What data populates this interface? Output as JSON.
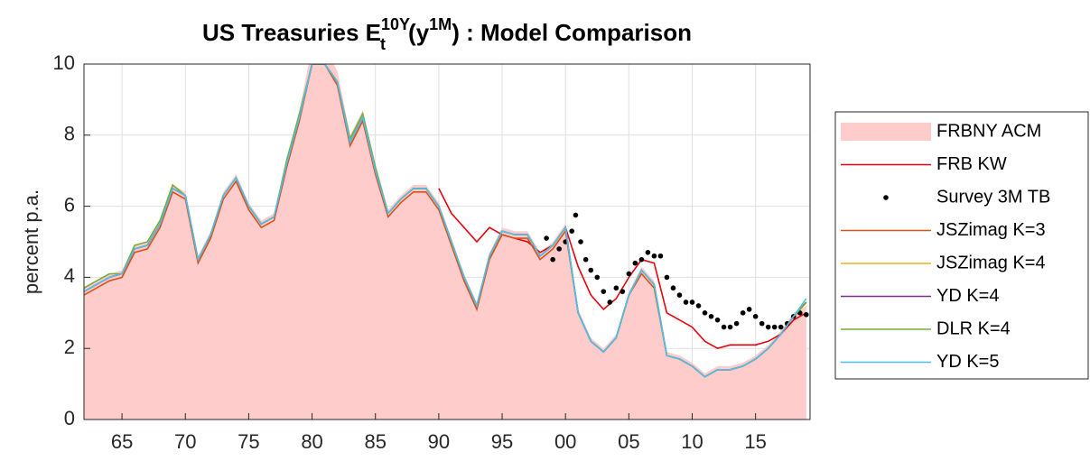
{
  "chart_data": {
    "type": "line",
    "title": {
      "text": "US Treasuries E",
      "sub": "t",
      "sup": "10Y",
      "mid": "(y",
      "sup2": "1M",
      "end": ") : Model Comparison"
    },
    "y_label": "percent p.a.",
    "xlim": [
      1962,
      2019.3
    ],
    "ylim": [
      0,
      10
    ],
    "xticks": [
      {
        "value": 1965,
        "label": "65"
      },
      {
        "value": 1970,
        "label": "70"
      },
      {
        "value": 1975,
        "label": "75"
      },
      {
        "value": 1980,
        "label": "80"
      },
      {
        "value": 1985,
        "label": "85"
      },
      {
        "value": 1990,
        "label": "90"
      },
      {
        "value": 1995,
        "label": "95"
      },
      {
        "value": 2000,
        "label": "00"
      },
      {
        "value": 2005,
        "label": "05"
      },
      {
        "value": 2010,
        "label": "10"
      },
      {
        "value": 2015,
        "label": "15"
      }
    ],
    "yticks": [
      0,
      2,
      4,
      6,
      8,
      10
    ],
    "grid": true,
    "legend": "outside-right",
    "x": [
      1962,
      1963,
      1964,
      1965,
      1966,
      1967,
      1968,
      1969,
      1970,
      1971,
      1972,
      1973,
      1974,
      1975,
      1976,
      1977,
      1978,
      1979,
      1980,
      1981,
      1982,
      1983,
      1984,
      1985,
      1986,
      1987,
      1988,
      1989,
      1990,
      1991,
      1992,
      1993,
      1994,
      1995,
      1996,
      1997,
      1998,
      1999,
      2000,
      2001,
      2002,
      2003,
      2004,
      2005,
      2006,
      2007,
      2008,
      2009,
      2010,
      2011,
      2012,
      2013,
      2014,
      2015,
      2016,
      2017,
      2018,
      2019
    ],
    "series": [
      {
        "name": "FRBNY ACM",
        "style": "area",
        "color": "#ffcccc",
        "values": [
          3.7,
          3.9,
          4.1,
          4.2,
          4.9,
          5.0,
          5.6,
          6.6,
          6.4,
          4.6,
          5.3,
          6.4,
          6.9,
          6.1,
          5.6,
          5.8,
          7.3,
          8.7,
          10.5,
          10.5,
          9.8,
          8.0,
          8.7,
          7.2,
          5.9,
          6.3,
          6.6,
          6.6,
          6.1,
          5.1,
          4.1,
          3.3,
          4.7,
          5.4,
          5.3,
          5.3,
          4.7,
          5.0,
          5.5,
          3.1,
          2.3,
          2.0,
          2.4,
          3.6,
          4.3,
          3.9,
          1.9,
          1.8,
          1.6,
          1.3,
          1.5,
          1.5,
          1.6,
          1.8,
          2.1,
          2.5,
          3.0,
          3.2
        ]
      },
      {
        "name": "FRB KW",
        "style": "line",
        "color": "#e8000b",
        "values": [
          null,
          null,
          null,
          null,
          null,
          null,
          null,
          null,
          null,
          null,
          null,
          null,
          null,
          null,
          null,
          null,
          null,
          null,
          null,
          null,
          null,
          null,
          null,
          null,
          null,
          null,
          null,
          null,
          6.5,
          5.8,
          5.4,
          5.0,
          5.4,
          5.2,
          5.1,
          5.0,
          4.7,
          4.9,
          5.4,
          4.3,
          3.5,
          3.1,
          3.4,
          4.0,
          4.5,
          4.4,
          3.0,
          2.8,
          2.6,
          2.2,
          2.0,
          2.1,
          2.1,
          2.1,
          2.2,
          2.4,
          2.8,
          3.0
        ]
      },
      {
        "name": "Survey 3M TB",
        "style": "marker",
        "color": "#000000",
        "x": [
          1998.5,
          1999,
          1999.5,
          2000,
          2000.5,
          2000.8,
          2001.2,
          2001.6,
          2002,
          2002.5,
          2003,
          2003.5,
          2004,
          2004.5,
          2005,
          2005.5,
          2006,
          2006.5,
          2007,
          2007.5,
          2008,
          2008.5,
          2009,
          2009.5,
          2010,
          2010.5,
          2011,
          2011.5,
          2012,
          2012.5,
          2013,
          2013.5,
          2014,
          2014.5,
          2015,
          2015.5,
          2016,
          2016.5,
          2017,
          2017.5,
          2018,
          2018.5,
          2019
        ],
        "values": [
          5.1,
          4.5,
          4.8,
          5.0,
          5.3,
          5.75,
          5.0,
          4.5,
          4.2,
          4.0,
          3.6,
          3.3,
          3.7,
          3.6,
          4.1,
          4.4,
          4.5,
          4.7,
          4.6,
          4.6,
          4.0,
          3.7,
          3.5,
          3.3,
          3.3,
          3.2,
          3.0,
          2.9,
          2.8,
          2.6,
          2.6,
          2.7,
          3.0,
          3.1,
          2.9,
          2.7,
          2.6,
          2.6,
          2.6,
          2.7,
          2.9,
          3.0,
          2.95
        ]
      },
      {
        "name": "JSZimag K=3",
        "style": "line",
        "color": "#d95319",
        "values": [
          3.5,
          3.7,
          3.9,
          4.0,
          4.7,
          4.8,
          5.4,
          6.4,
          6.2,
          4.4,
          5.1,
          6.2,
          6.7,
          5.9,
          5.4,
          5.6,
          7.1,
          8.4,
          10.0,
          10.0,
          9.4,
          7.7,
          8.4,
          6.9,
          5.7,
          6.1,
          6.4,
          6.4,
          5.9,
          4.9,
          3.9,
          3.1,
          4.5,
          5.2,
          5.1,
          5.1,
          4.5,
          4.8,
          5.3,
          3.0,
          2.2,
          1.9,
          2.3,
          3.5,
          4.1,
          3.7,
          1.8,
          1.7,
          1.5,
          1.2,
          1.4,
          1.4,
          1.5,
          1.7,
          2.0,
          2.4,
          2.9,
          3.3
        ]
      },
      {
        "name": "JSZimag K=4",
        "style": "line",
        "color": "#edb120",
        "values": [
          3.6,
          3.8,
          4.0,
          4.1,
          4.8,
          4.9,
          5.5,
          6.5,
          6.3,
          4.5,
          5.2,
          6.3,
          6.8,
          6.0,
          5.5,
          5.7,
          7.2,
          8.5,
          10.0,
          10.0,
          9.5,
          7.8,
          8.5,
          7.0,
          5.8,
          6.2,
          6.5,
          6.5,
          6.0,
          5.0,
          4.0,
          3.2,
          4.6,
          5.3,
          5.2,
          5.2,
          4.6,
          4.9,
          5.4,
          3.0,
          2.2,
          1.9,
          2.3,
          3.5,
          4.2,
          3.8,
          1.8,
          1.7,
          1.5,
          1.2,
          1.4,
          1.4,
          1.5,
          1.7,
          2.0,
          2.4,
          2.9,
          3.3
        ]
      },
      {
        "name": "YD  K=4",
        "style": "line",
        "color": "#7e2f8e",
        "values": [
          3.6,
          3.8,
          4.0,
          4.1,
          4.8,
          4.9,
          5.5,
          6.5,
          6.3,
          4.5,
          5.2,
          6.3,
          6.8,
          6.0,
          5.5,
          5.7,
          7.2,
          8.5,
          10.0,
          10.0,
          9.5,
          7.8,
          8.5,
          7.0,
          5.8,
          6.2,
          6.5,
          6.5,
          6.0,
          5.0,
          4.0,
          3.2,
          4.6,
          5.3,
          5.2,
          5.2,
          4.6,
          4.9,
          5.4,
          3.0,
          2.2,
          1.9,
          2.3,
          3.5,
          4.2,
          3.8,
          1.8,
          1.7,
          1.5,
          1.2,
          1.4,
          1.4,
          1.5,
          1.7,
          2.0,
          2.4,
          2.9,
          3.3
        ]
      },
      {
        "name": "DLR K=4",
        "style": "line",
        "color": "#77ac30",
        "values": [
          3.7,
          3.9,
          4.1,
          4.1,
          4.9,
          5.0,
          5.6,
          6.6,
          6.3,
          4.5,
          5.2,
          6.3,
          6.8,
          6.0,
          5.5,
          5.7,
          7.3,
          8.6,
          10.0,
          10.0,
          9.5,
          7.9,
          8.6,
          7.1,
          5.8,
          6.2,
          6.5,
          6.5,
          6.0,
          5.0,
          4.0,
          3.2,
          4.6,
          5.3,
          5.2,
          5.2,
          4.6,
          4.9,
          5.4,
          3.0,
          2.2,
          1.9,
          2.3,
          3.5,
          4.2,
          3.8,
          1.8,
          1.7,
          1.5,
          1.2,
          1.4,
          1.4,
          1.5,
          1.7,
          2.0,
          2.4,
          2.9,
          3.3
        ]
      },
      {
        "name": "YD K=5",
        "style": "line",
        "color": "#4dbeee",
        "values": [
          3.6,
          3.8,
          4.0,
          4.1,
          4.8,
          4.9,
          5.5,
          6.5,
          6.3,
          4.5,
          5.2,
          6.3,
          6.8,
          6.0,
          5.5,
          5.7,
          7.2,
          8.5,
          10.0,
          10.0,
          9.5,
          7.8,
          8.5,
          7.0,
          5.8,
          6.2,
          6.5,
          6.5,
          6.0,
          5.0,
          4.0,
          3.2,
          4.6,
          5.3,
          5.2,
          5.2,
          4.6,
          4.9,
          5.4,
          3.0,
          2.2,
          1.9,
          2.3,
          3.5,
          4.2,
          3.8,
          1.8,
          1.7,
          1.5,
          1.2,
          1.4,
          1.4,
          1.5,
          1.7,
          2.0,
          2.4,
          2.9,
          3.4
        ]
      }
    ]
  }
}
